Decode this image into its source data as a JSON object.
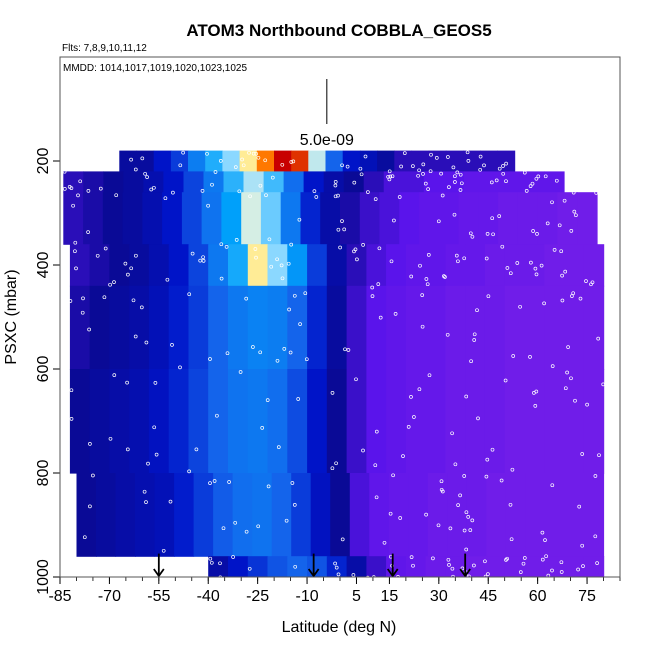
{
  "chart_data": {
    "type": "heatmap",
    "title": "ATOM3 Northbound COBBLA_GEOS5",
    "flights_label": "Flts: 7,8,9,10,11,12",
    "dates_label": "MMDD: 1014,1017,1019,1020,1023,1025",
    "xlabel": "Latitude (deg N)",
    "ylabel": "PSXC (mbar)",
    "xlim": [
      -85,
      85
    ],
    "ylim": [
      1000,
      0
    ],
    "x_ticks": [
      -85,
      -70,
      -55,
      -40,
      -25,
      -10,
      5,
      15,
      30,
      45,
      60,
      75
    ],
    "x_tick_labels": [
      "-85",
      "-70",
      "-55",
      "-40",
      "-25",
      "-10",
      "5",
      "15",
      "30",
      "45",
      "60",
      "75"
    ],
    "y_ticks": [
      200,
      400,
      600,
      800,
      1000
    ],
    "y_tick_labels": [
      "200",
      "400",
      "600",
      "800",
      "1000"
    ],
    "colorbar_marker_label": "5.0e-09",
    "colorbar_marker_lat": -4,
    "flight_markers_lat": [
      -55,
      -8,
      16,
      38
    ],
    "lat_bins": [
      -82,
      -76,
      -70,
      -64,
      -58,
      -52,
      -46,
      -40,
      -34,
      -28,
      -22,
      -16,
      -10,
      -4,
      2,
      8,
      14,
      20,
      26,
      32,
      38,
      44,
      50,
      56,
      62,
      68,
      74,
      80
    ],
    "pressure_bands": [
      {
        "p": [
          180,
          220
        ],
        "lat": [
          -67,
          53
        ],
        "values": [
          0.15,
          0.15,
          0.2,
          0.25,
          0.35,
          0.45,
          0.55,
          0.7,
          0.88,
          1.0,
          0.95,
          0.6,
          0.3,
          0.2,
          0.18,
          0.15,
          0.12,
          0.12,
          0.12,
          0.12,
          0.12,
          0.12,
          0.12
        ]
      },
      {
        "p": [
          220,
          260
        ],
        "lat": [
          -84,
          68
        ],
        "values": [
          0.12,
          0.13,
          0.14,
          0.15,
          0.17,
          0.2,
          0.26,
          0.34,
          0.46,
          0.58,
          0.48,
          0.32,
          0.2,
          0.16,
          0.14,
          0.12,
          0.1,
          0.1,
          0.09,
          0.09,
          0.08,
          0.08,
          0.08,
          0.08,
          0.08
        ]
      },
      {
        "p": [
          260,
          360
        ],
        "lat": [
          -84,
          78
        ],
        "values": [
          0.12,
          0.13,
          0.14,
          0.15,
          0.17,
          0.2,
          0.26,
          0.33,
          0.42,
          0.62,
          0.52,
          0.34,
          0.22,
          0.16,
          0.13,
          0.11,
          0.1,
          0.09,
          0.08,
          0.08,
          0.07,
          0.07,
          0.06,
          0.06,
          0.06,
          0.05,
          0.05
        ]
      },
      {
        "p": [
          360,
          440
        ],
        "lat": [
          -82,
          80
        ],
        "values": [
          0.12,
          0.13,
          0.14,
          0.15,
          0.17,
          0.2,
          0.26,
          0.34,
          0.44,
          0.7,
          0.55,
          0.4,
          0.25,
          0.16,
          0.12,
          0.1,
          0.09,
          0.08,
          0.08,
          0.07,
          0.07,
          0.06,
          0.06,
          0.06,
          0.05,
          0.05,
          0.05
        ]
      },
      {
        "p": [
          440,
          600
        ],
        "lat": [
          -82,
          80
        ],
        "values": [
          0.13,
          0.14,
          0.15,
          0.16,
          0.18,
          0.21,
          0.25,
          0.3,
          0.34,
          0.36,
          0.35,
          0.3,
          0.22,
          0.15,
          0.11,
          0.09,
          0.08,
          0.07,
          0.07,
          0.06,
          0.06,
          0.06,
          0.05,
          0.05,
          0.05,
          0.05,
          0.05
        ]
      },
      {
        "p": [
          600,
          800
        ],
        "lat": [
          -82,
          80
        ],
        "values": [
          0.14,
          0.15,
          0.16,
          0.17,
          0.19,
          0.22,
          0.26,
          0.3,
          0.33,
          0.34,
          0.32,
          0.27,
          0.2,
          0.14,
          0.11,
          0.09,
          0.08,
          0.07,
          0.07,
          0.06,
          0.06,
          0.06,
          0.05,
          0.05,
          0.05,
          0.05,
          0.05
        ]
      },
      {
        "p": [
          800,
          960
        ],
        "lat": [
          -80,
          80
        ],
        "values": [
          0.14,
          0.15,
          0.16,
          0.17,
          0.18,
          0.21,
          0.25,
          0.29,
          0.32,
          0.33,
          0.3,
          0.25,
          0.19,
          0.14,
          0.1,
          0.08,
          0.07,
          0.07,
          0.06,
          0.06,
          0.06,
          0.05,
          0.05,
          0.05,
          0.05,
          0.05,
          0.05
        ]
      },
      {
        "p": [
          960,
          1010
        ],
        "lat": [
          -40,
          80
        ],
        "values": [
          0.16,
          0.2,
          0.24,
          0.28,
          0.3,
          0.28,
          0.22,
          0.16,
          0.11,
          0.08,
          0.07,
          0.06,
          0.06,
          0.05,
          0.05,
          0.05,
          0.05,
          0.05,
          0.05,
          0.05
        ]
      }
    ]
  }
}
